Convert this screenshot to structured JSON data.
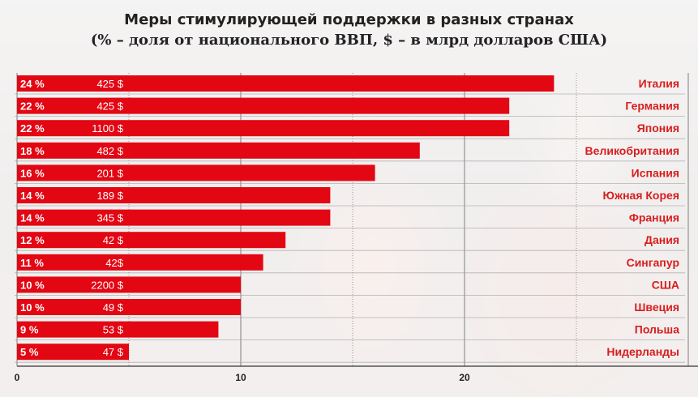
{
  "title": "Меры стимулирующей поддержки в разных странах",
  "subtitle": "(% – доля от национального ВВП, $ – в млрд долларов США)",
  "colors": {
    "bar": "#e30613",
    "country_text": "#d81e1e",
    "value_text": "#ffffff"
  },
  "chart_data": {
    "type": "bar",
    "orientation": "horizontal",
    "categories": [
      "Италия",
      "Германия",
      "Япония",
      "Великобритания",
      "Испания",
      "Южная Корея",
      "Франция",
      "Дания",
      "Сингапур",
      "США",
      "Швеция",
      "Польша",
      "Нидерланды"
    ],
    "values": [
      24,
      22,
      22,
      18,
      16,
      14,
      14,
      12,
      11,
      10,
      10,
      9,
      5
    ],
    "value_labels": [
      "24 %",
      "22 %",
      "22 %",
      "18 %",
      "16 %",
      "14 %",
      "14 %",
      "12 %",
      "11 %",
      "10 %",
      "10 %",
      "9 %",
      "5 %"
    ],
    "usd_labels": [
      "425 $",
      "425 $",
      "1100 $",
      "482 $",
      "201 $",
      "189 $",
      "345 $",
      "42 $",
      "42$",
      "2200 $",
      "49 $",
      "53 $",
      "47 $"
    ],
    "title": "Меры стимулирующей поддержки в разных странах",
    "subtitle": "(% – доля от национального ВВП, $ – в млрд долларов США)",
    "xlabel": "",
    "ylabel": "",
    "x_ticks": [
      "0",
      "10",
      "20"
    ],
    "x_tick_values": [
      0,
      10,
      20
    ],
    "xlim": [
      0,
      30
    ],
    "grid": true
  }
}
